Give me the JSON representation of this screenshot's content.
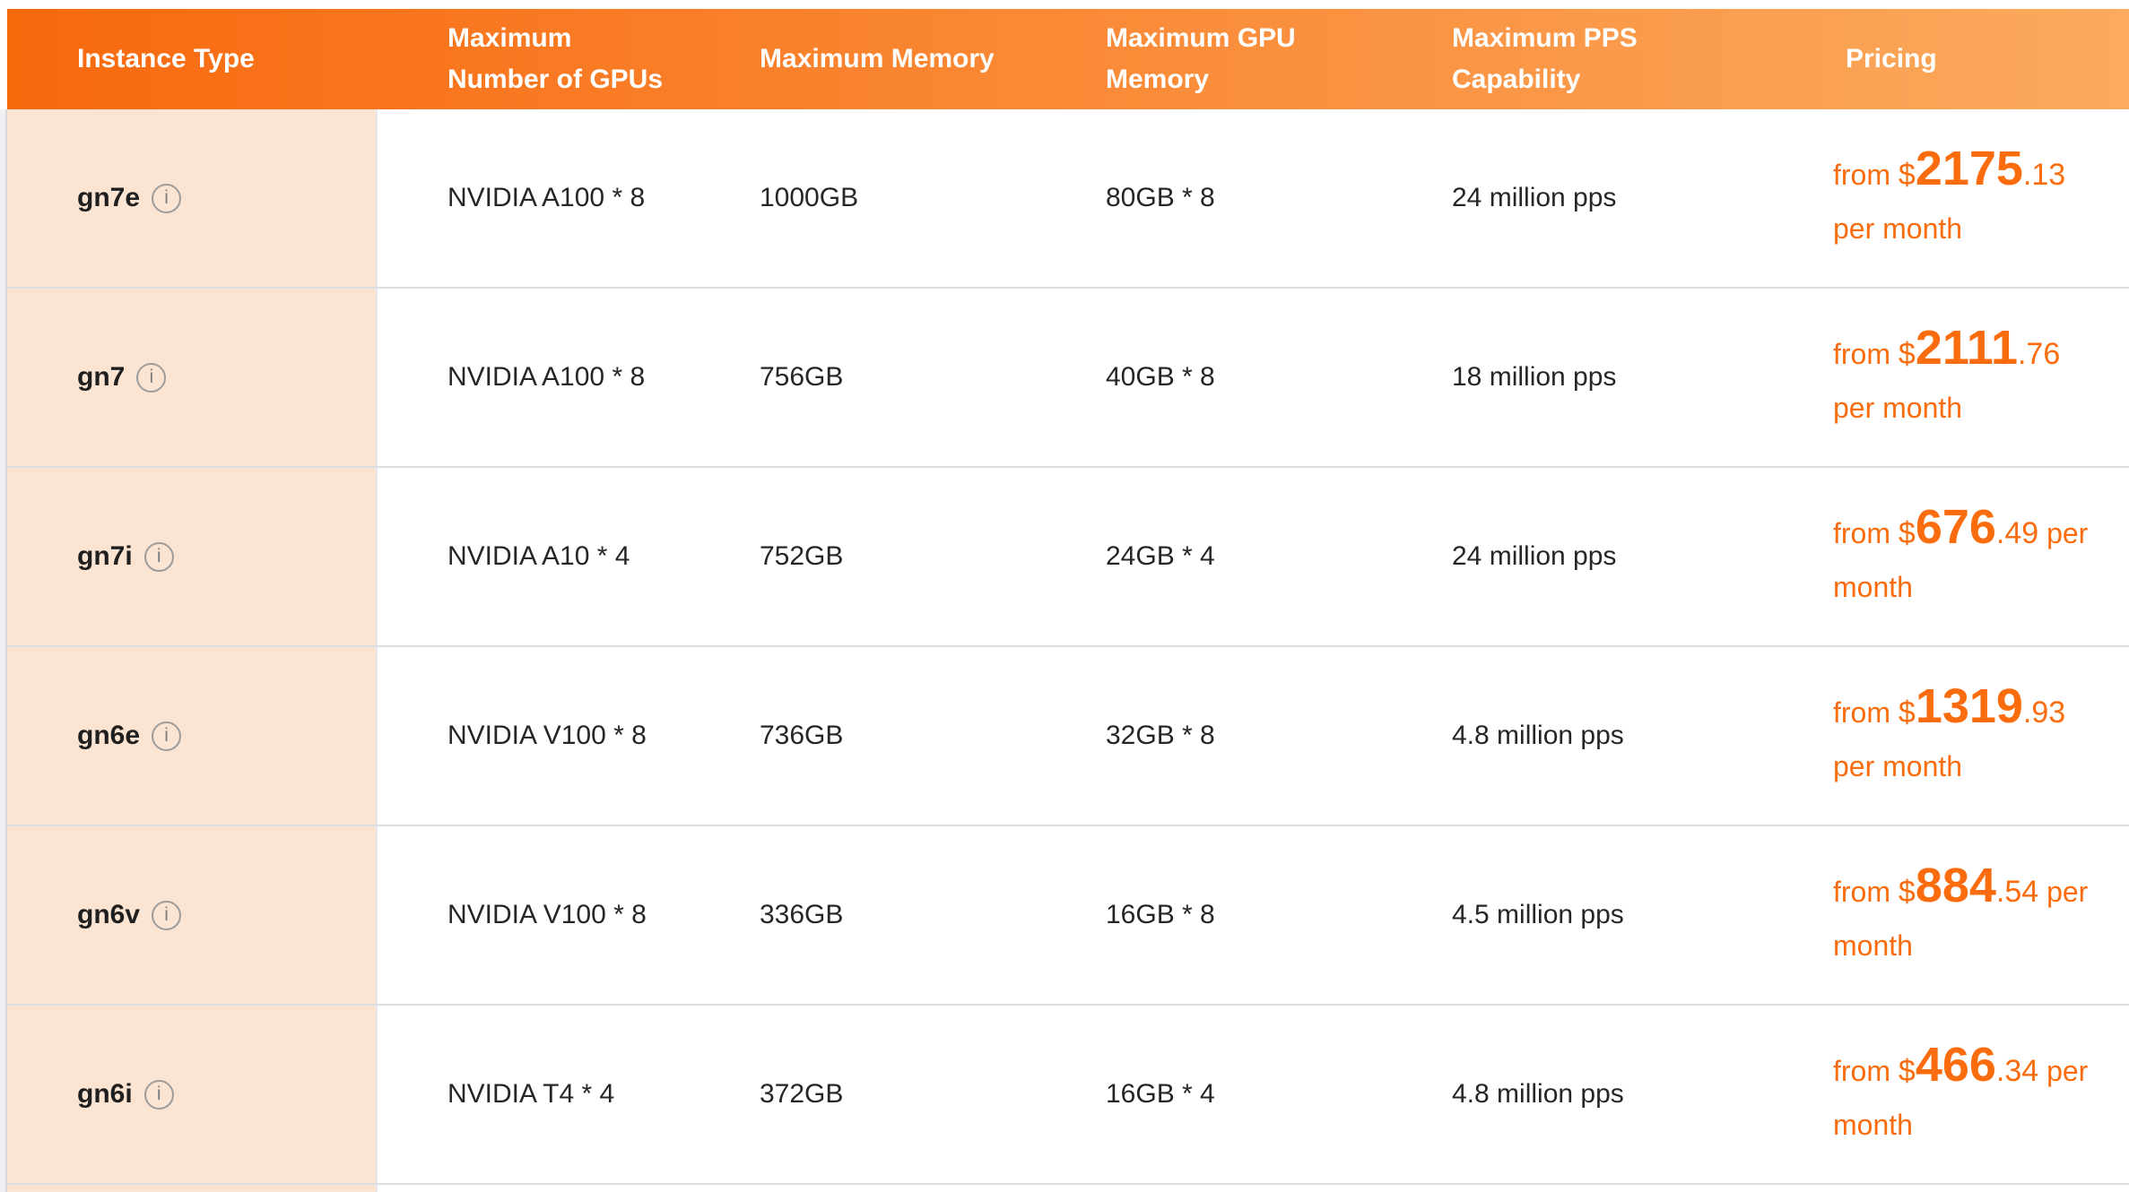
{
  "colors": {
    "header_gradient_start": "#f8690e",
    "header_gradient_end": "#fbaa5e",
    "instance_column_bg": "#fce4d2",
    "price_orange": "#fa6c0e",
    "row_divider": "#dcdde3",
    "body_text": "#262626",
    "header_text": "#ffffff",
    "info_icon_gray": "#9c9c9c"
  },
  "icons": {
    "info_glyph": "i"
  },
  "table": {
    "columns": [
      {
        "label": "Instance Type",
        "line1": "Instance Type",
        "line2": ""
      },
      {
        "label": "Maximum Number of GPUs",
        "line1": "Maximum",
        "line2": "Number of GPUs"
      },
      {
        "label": "Maximum Memory",
        "line1": "Maximum Memory",
        "line2": ""
      },
      {
        "label": "Maximum GPU Memory",
        "line1": "Maximum GPU",
        "line2": "Memory"
      },
      {
        "label": "Maximum PPS Capability",
        "line1": "Maximum PPS",
        "line2": "Capability"
      },
      {
        "label": "Pricing",
        "line1": "Pricing",
        "line2": ""
      }
    ],
    "rows": [
      {
        "instance_type": "gn7e",
        "max_gpus": "NVIDIA A100 * 8",
        "max_memory": "1000GB",
        "max_gpu_memory": "80GB * 8",
        "max_pps": "24 million pps",
        "pricing": {
          "from": "from ",
          "currency": "$",
          "amount": "2175",
          "cents": ".13",
          "period": " per month"
        }
      },
      {
        "instance_type": "gn7",
        "max_gpus": "NVIDIA A100 * 8",
        "max_memory": "756GB",
        "max_gpu_memory": "40GB * 8",
        "max_pps": "18 million pps",
        "pricing": {
          "from": "from ",
          "currency": "$",
          "amount": "2111",
          "cents": ".76",
          "period": " per month"
        }
      },
      {
        "instance_type": "gn7i",
        "max_gpus": "NVIDIA A10 * 4",
        "max_memory": "752GB",
        "max_gpu_memory": "24GB * 4",
        "max_pps": "24 million pps",
        "pricing": {
          "from": "from ",
          "currency": "$",
          "amount": "676",
          "cents": ".49",
          "period": " per month"
        }
      },
      {
        "instance_type": "gn6e",
        "max_gpus": "NVIDIA V100 * 8",
        "max_memory": "736GB",
        "max_gpu_memory": "32GB * 8",
        "max_pps": "4.8 million pps",
        "pricing": {
          "from": "from ",
          "currency": "$",
          "amount": "1319",
          "cents": ".93",
          "period": " per month"
        }
      },
      {
        "instance_type": "gn6v",
        "max_gpus": "NVIDIA V100 * 8",
        "max_memory": "336GB",
        "max_gpu_memory": "16GB * 8",
        "max_pps": "4.5 million pps",
        "pricing": {
          "from": "from ",
          "currency": "$",
          "amount": "884",
          "cents": ".54",
          "period": " per month"
        }
      },
      {
        "instance_type": "gn6i",
        "max_gpus": "NVIDIA T4 * 4",
        "max_memory": "372GB",
        "max_gpu_memory": "16GB * 4",
        "max_pps": "4.8 million pps",
        "pricing": {
          "from": "from ",
          "currency": "$",
          "amount": "466",
          "cents": ".34",
          "period": " per month"
        }
      }
    ]
  }
}
